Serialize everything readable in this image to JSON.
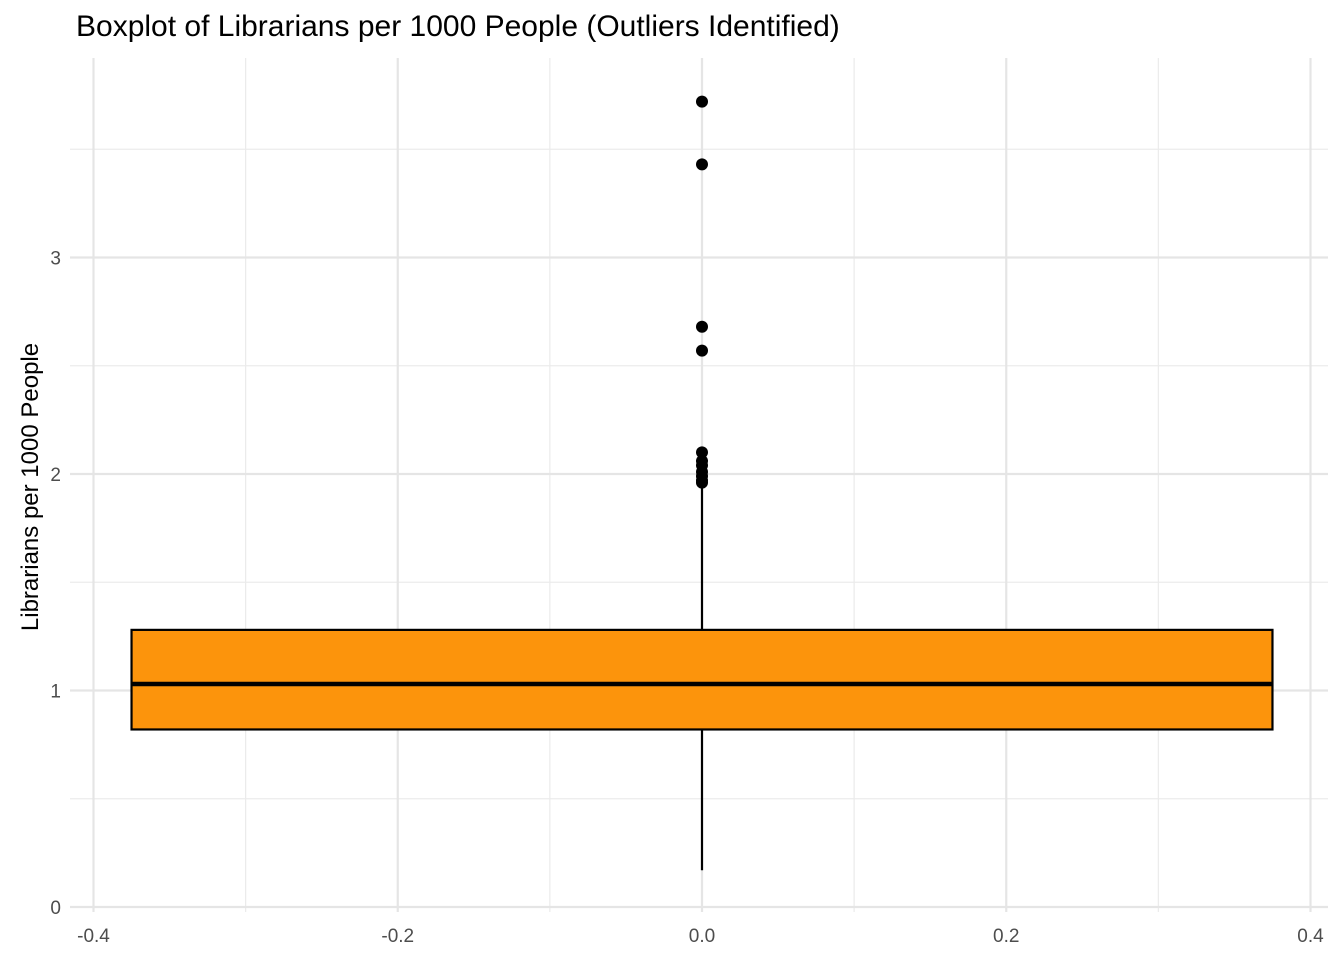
{
  "chart_data": {
    "type": "boxplot",
    "title": "Boxplot of Librarians per 1000 People (Outliers Identified)",
    "xlabel": "",
    "ylabel": "Librarians per 1000 People",
    "xlim": [
      -0.4,
      0.4
    ],
    "ylim": [
      0,
      3.8
    ],
    "x_ticks": [
      -0.4,
      -0.2,
      0.0,
      0.2,
      0.4
    ],
    "x_tick_labels": [
      "-0.4",
      "-0.2",
      "0.0",
      "0.2",
      "0.4"
    ],
    "y_ticks": [
      0,
      1,
      2,
      3
    ],
    "y_tick_labels": [
      "0",
      "1",
      "2",
      "3"
    ],
    "grid": true,
    "legend": "none",
    "box": {
      "x": 0.0,
      "x_extent": [
        -0.375,
        0.375
      ],
      "min": 0.17,
      "q1": 0.82,
      "median": 1.03,
      "q3": 1.28,
      "max": 1.95,
      "fill_color": "#FC940C",
      "line_color": "#000000"
    },
    "outliers": [
      3.72,
      3.43,
      2.68,
      2.57,
      2.1,
      2.06,
      2.04,
      2.01,
      1.99,
      1.97,
      1.96
    ],
    "point_color": "#000000"
  }
}
